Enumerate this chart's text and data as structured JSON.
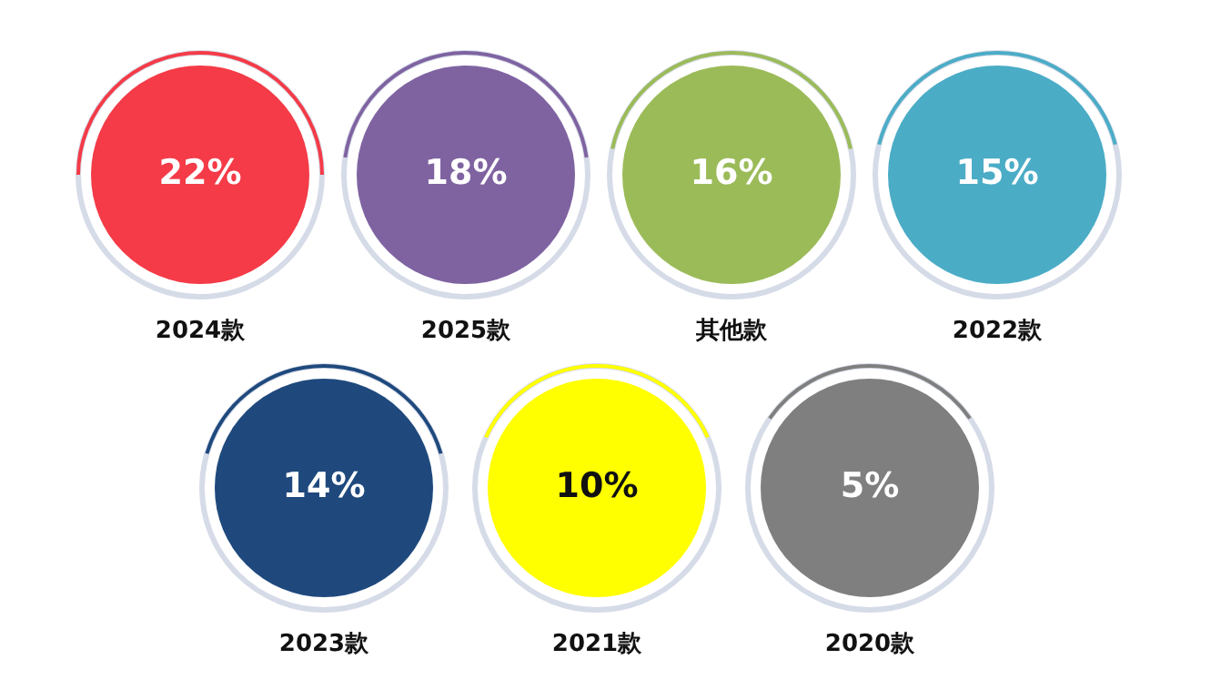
{
  "chart_data": {
    "type": "other",
    "categories": [
      "2024款",
      "2025款",
      "其他款",
      "2022款",
      "2023款",
      "2021款",
      "2020款"
    ],
    "values": [
      22,
      18,
      16,
      15,
      14,
      10,
      5
    ],
    "value_labels": [
      "22%",
      "18%",
      "16%",
      "15%",
      "14%",
      "10%",
      "5%"
    ],
    "colors": [
      "#f43b47",
      "#7f63a1",
      "#9bbb59",
      "#4bacc6",
      "#1f497d",
      "#ffff00",
      "#7f7f7f"
    ]
  }
}
